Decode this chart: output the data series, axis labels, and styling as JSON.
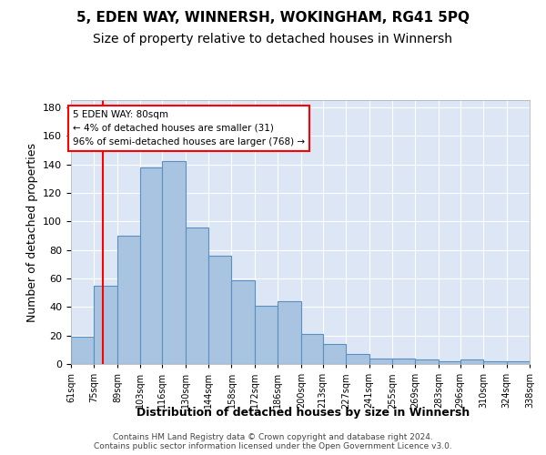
{
  "title": "5, EDEN WAY, WINNERSH, WOKINGHAM, RG41 5PQ",
  "subtitle": "Size of property relative to detached houses in Winnersh",
  "xlabel": "Distribution of detached houses by size in Winnersh",
  "ylabel": "Number of detached properties",
  "bar_labels": [
    "61sqm",
    "75sqm",
    "89sqm",
    "103sqm",
    "116sqm",
    "130sqm",
    "144sqm",
    "158sqm",
    "172sqm",
    "186sqm",
    "200sqm",
    "213sqm",
    "227sqm",
    "241sqm",
    "255sqm",
    "269sqm",
    "283sqm",
    "296sqm",
    "310sqm",
    "324sqm",
    "338sqm"
  ],
  "values": [
    19,
    55,
    90,
    138,
    142,
    96,
    76,
    59,
    41,
    44,
    21,
    14,
    7,
    4,
    4,
    3,
    2,
    3,
    2,
    2
  ],
  "bin_edges": [
    61,
    75,
    89,
    103,
    116,
    130,
    144,
    158,
    172,
    186,
    200,
    213,
    227,
    241,
    255,
    269,
    283,
    296,
    310,
    324,
    338
  ],
  "bar_color": "#a8c4e0",
  "bar_edge_color": "#5a8fc0",
  "vline_x": 80,
  "vline_color": "red",
  "annotation_text": "5 EDEN WAY: 80sqm\n← 4% of detached houses are smaller (31)\n96% of semi-detached houses are larger (768) →",
  "annotation_box_color": "white",
  "annotation_box_edge": "red",
  "ylim": [
    0,
    185
  ],
  "yticks": [
    0,
    20,
    40,
    60,
    80,
    100,
    120,
    140,
    160,
    180
  ],
  "background_color": "#dde6f5",
  "footer": "Contains HM Land Registry data © Crown copyright and database right 2024.\nContains public sector information licensed under the Open Government Licence v3.0.",
  "title_fontsize": 11,
  "subtitle_fontsize": 10,
  "xlabel_fontsize": 9,
  "ylabel_fontsize": 9
}
